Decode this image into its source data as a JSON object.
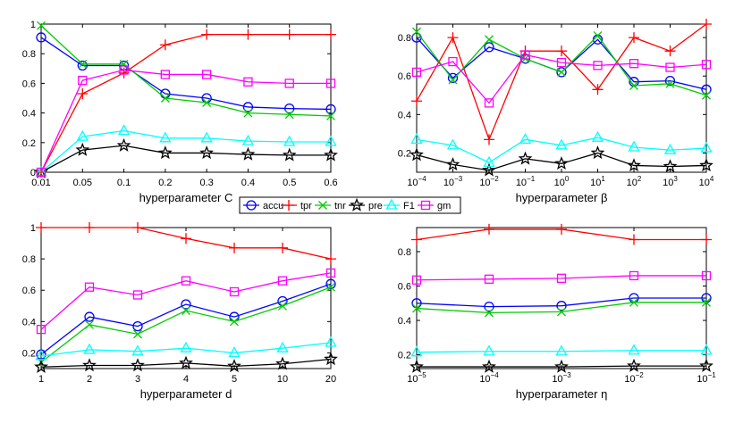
{
  "legend": [
    {
      "label": "accu",
      "color": "#0000ff",
      "marker": "circle"
    },
    {
      "label": "tpr",
      "color": "#ff0000",
      "marker": "plus"
    },
    {
      "label": "tnr",
      "color": "#00cc00",
      "marker": "cross"
    },
    {
      "label": "pre",
      "color": "#000000",
      "marker": "star"
    },
    {
      "label": "F1",
      "color": "#00ffff",
      "marker": "triangle"
    },
    {
      "label": "gm",
      "color": "#ff00ff",
      "marker": "square"
    }
  ],
  "chart_data": [
    {
      "type": "line",
      "xlabel": "hyperparameter C",
      "categories": [
        "0.01",
        "0.05",
        "0.1",
        "0.2",
        "0.3",
        "0.4",
        "0.5",
        "0.6"
      ],
      "ylim": [
        0,
        1
      ],
      "yticks": [
        "0",
        "0.2",
        "0.4",
        "0.6",
        "0.8",
        "1"
      ],
      "series": [
        {
          "name": "accu",
          "values": [
            0.91,
            0.72,
            0.72,
            0.53,
            0.5,
            0.44,
            0.43,
            0.425
          ]
        },
        {
          "name": "tpr",
          "values": [
            0.0,
            0.53,
            0.67,
            0.86,
            0.93,
            0.93,
            0.93,
            0.93
          ]
        },
        {
          "name": "tnr",
          "values": [
            0.99,
            0.73,
            0.73,
            0.5,
            0.47,
            0.4,
            0.39,
            0.38
          ]
        },
        {
          "name": "pre",
          "values": [
            0.0,
            0.15,
            0.18,
            0.13,
            0.13,
            0.12,
            0.115,
            0.115
          ]
        },
        {
          "name": "F1",
          "values": [
            0.0,
            0.24,
            0.28,
            0.23,
            0.23,
            0.21,
            0.205,
            0.205
          ]
        },
        {
          "name": "gm",
          "values": [
            0.0,
            0.62,
            0.69,
            0.66,
            0.66,
            0.61,
            0.6,
            0.6
          ]
        }
      ]
    },
    {
      "type": "line",
      "xlabel": "hyperparameter β",
      "categories": [
        "10^-4",
        "10^-3",
        "10^-2",
        "10^-1",
        "10^0",
        "10^1",
        "10^2",
        "10^3",
        "10^4"
      ],
      "ylim": [
        0.1,
        0.87
      ],
      "yticks": [
        "0.2",
        "0.4",
        "0.6",
        "0.8"
      ],
      "series": [
        {
          "name": "accu",
          "values": [
            0.8,
            0.59,
            0.75,
            0.69,
            0.62,
            0.79,
            0.57,
            0.575,
            0.53
          ]
        },
        {
          "name": "tpr",
          "values": [
            0.47,
            0.8,
            0.27,
            0.73,
            0.73,
            0.53,
            0.8,
            0.73,
            0.87
          ]
        },
        {
          "name": "tnr",
          "values": [
            0.83,
            0.58,
            0.79,
            0.69,
            0.62,
            0.81,
            0.55,
            0.56,
            0.5
          ]
        },
        {
          "name": "pre",
          "values": [
            0.19,
            0.14,
            0.11,
            0.17,
            0.145,
            0.2,
            0.135,
            0.13,
            0.135
          ]
        },
        {
          "name": "F1",
          "values": [
            0.27,
            0.24,
            0.15,
            0.27,
            0.24,
            0.28,
            0.23,
            0.215,
            0.225
          ]
        },
        {
          "name": "gm",
          "values": [
            0.62,
            0.675,
            0.46,
            0.71,
            0.67,
            0.655,
            0.665,
            0.645,
            0.66
          ]
        }
      ]
    },
    {
      "type": "line",
      "xlabel": "hyperparameter d",
      "categories": [
        "1",
        "2",
        "3",
        "4",
        "5",
        "10",
        "20"
      ],
      "ylim": [
        0.1,
        1.0
      ],
      "yticks": [
        "0.2",
        "0.4",
        "0.6",
        "0.8",
        "1"
      ],
      "series": [
        {
          "name": "accu",
          "values": [
            0.19,
            0.43,
            0.37,
            0.51,
            0.43,
            0.53,
            0.64
          ]
        },
        {
          "name": "tpr",
          "values": [
            1.0,
            1.0,
            1.0,
            0.93,
            0.87,
            0.87,
            0.8
          ]
        },
        {
          "name": "tnr",
          "values": [
            0.14,
            0.38,
            0.32,
            0.47,
            0.4,
            0.5,
            0.62
          ]
        },
        {
          "name": "pre",
          "values": [
            0.11,
            0.12,
            0.12,
            0.135,
            0.115,
            0.13,
            0.16
          ]
        },
        {
          "name": "F1",
          "values": [
            0.18,
            0.22,
            0.21,
            0.23,
            0.2,
            0.23,
            0.265
          ]
        },
        {
          "name": "gm",
          "values": [
            0.35,
            0.62,
            0.57,
            0.66,
            0.59,
            0.66,
            0.71
          ]
        }
      ]
    },
    {
      "type": "line",
      "xlabel": "hyperparameter η",
      "categories": [
        "10^-5",
        "10^-4",
        "10^-3",
        "10^-2",
        "10^-1"
      ],
      "ylim": [
        0.12,
        0.94
      ],
      "yticks": [
        "0.2",
        "0.4",
        "0.6",
        "0.8"
      ],
      "series": [
        {
          "name": "accu",
          "values": [
            0.5,
            0.48,
            0.485,
            0.53,
            0.53
          ]
        },
        {
          "name": "tpr",
          "values": [
            0.87,
            0.93,
            0.93,
            0.87,
            0.87
          ]
        },
        {
          "name": "tnr",
          "values": [
            0.47,
            0.445,
            0.45,
            0.505,
            0.505
          ]
        },
        {
          "name": "pre",
          "values": [
            0.13,
            0.13,
            0.13,
            0.135,
            0.135
          ]
        },
        {
          "name": "F1",
          "values": [
            0.215,
            0.22,
            0.22,
            0.225,
            0.225
          ]
        },
        {
          "name": "gm",
          "values": [
            0.635,
            0.64,
            0.645,
            0.66,
            0.66
          ]
        }
      ]
    }
  ]
}
